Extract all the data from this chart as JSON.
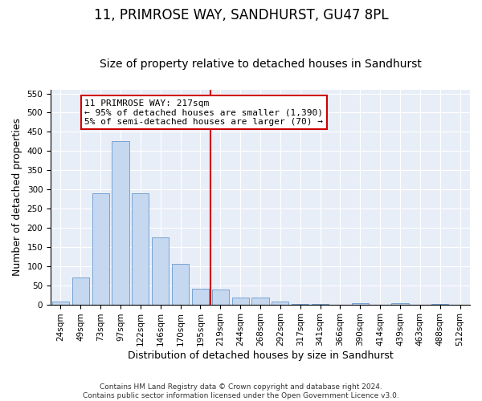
{
  "title": "11, PRIMROSE WAY, SANDHURST, GU47 8PL",
  "subtitle": "Size of property relative to detached houses in Sandhurst",
  "xlabel": "Distribution of detached houses by size in Sandhurst",
  "ylabel": "Number of detached properties",
  "bar_color": "#c5d8f0",
  "bar_edge_color": "#6699cc",
  "background_color": "#e8eef8",
  "grid_color": "#ffffff",
  "categories": [
    "24sqm",
    "49sqm",
    "73sqm",
    "97sqm",
    "122sqm",
    "146sqm",
    "170sqm",
    "195sqm",
    "219sqm",
    "244sqm",
    "268sqm",
    "292sqm",
    "317sqm",
    "341sqm",
    "366sqm",
    "390sqm",
    "414sqm",
    "439sqm",
    "463sqm",
    "488sqm",
    "512sqm"
  ],
  "values": [
    7,
    70,
    290,
    425,
    290,
    175,
    105,
    42,
    38,
    17,
    17,
    7,
    2,
    2,
    0,
    4,
    0,
    3,
    0,
    2,
    0
  ],
  "vline_index": 8,
  "vline_color": "#cc0000",
  "annotation_line1": "11 PRIMROSE WAY: 217sqm",
  "annotation_line2": "← 95% of detached houses are smaller (1,390)",
  "annotation_line3": "5% of semi-detached houses are larger (70) →",
  "annotation_box_color": "#ffffff",
  "annotation_box_edge_color": "#cc0000",
  "ylim": [
    0,
    560
  ],
  "yticks": [
    0,
    50,
    100,
    150,
    200,
    250,
    300,
    350,
    400,
    450,
    500,
    550
  ],
  "footer_line1": "Contains HM Land Registry data © Crown copyright and database right 2024.",
  "footer_line2": "Contains public sector information licensed under the Open Government Licence v3.0.",
  "title_fontsize": 12,
  "subtitle_fontsize": 10,
  "tick_fontsize": 7.5,
  "label_fontsize": 9,
  "annotation_fontsize": 8,
  "footer_fontsize": 6.5
}
